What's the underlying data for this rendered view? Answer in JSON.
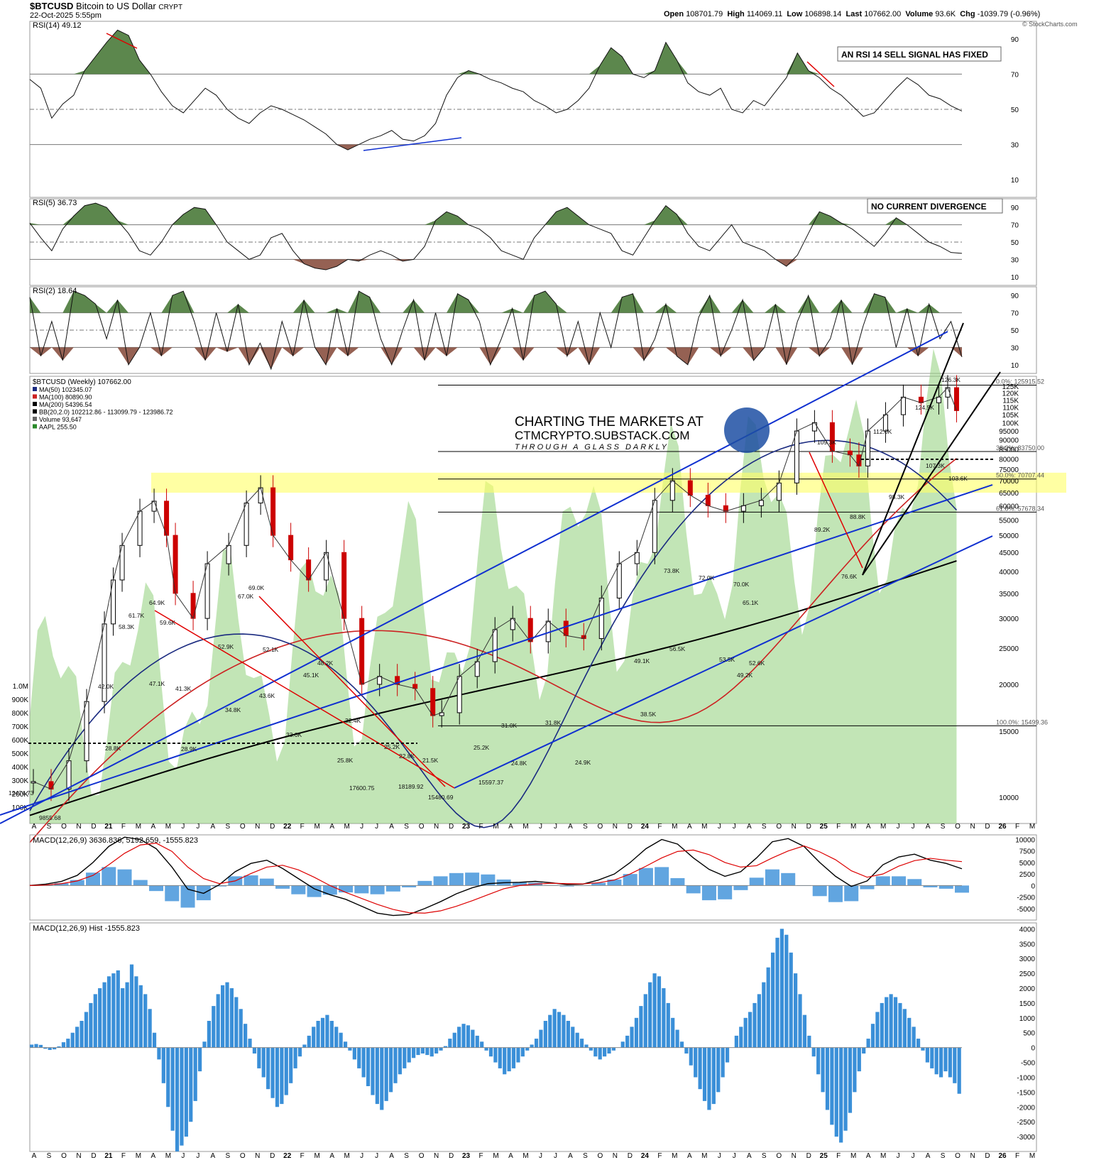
{
  "header": {
    "symbol": "$BTCUSD",
    "name": "Bitcoin to US Dollar",
    "exchange": "CRYPT",
    "date": "22-Oct-2025 5:55pm",
    "open_label": "Open",
    "open": "108701.79",
    "high_label": "High",
    "high": "114069.11",
    "low_label": "Low",
    "low": "106898.14",
    "last_label": "Last",
    "last": "107662.00",
    "volume_label": "Volume",
    "volume": "93.6K",
    "chg_label": "Chg",
    "chg": "-1039.79 (-0.96%)",
    "credit": "© StockCharts.com"
  },
  "colors": {
    "rsi_overbought": "#4a7a3a",
    "rsi_oversold": "#8a5040",
    "price_up": "#000000",
    "price_down": "#cc0000",
    "ma50": "#1a2a80",
    "ma100": "#cc2222",
    "ma200": "#000000",
    "volume_area": "#8fcf7a",
    "fib_band": "#ffff66",
    "macd_hist": "#3a8fd8",
    "trendline_blue": "#1030d0",
    "trendline_red": "#e00000"
  },
  "x_axis_labels": [
    "A",
    "S",
    "O",
    "N",
    "D",
    "21",
    "F",
    "M",
    "A",
    "M",
    "J",
    "J",
    "A",
    "S",
    "O",
    "N",
    "D",
    "22",
    "F",
    "M",
    "A",
    "M",
    "J",
    "J",
    "A",
    "S",
    "O",
    "N",
    "D",
    "23",
    "F",
    "M",
    "A",
    "M",
    "J",
    "J",
    "A",
    "S",
    "O",
    "N",
    "D",
    "24",
    "F",
    "M",
    "A",
    "M",
    "J",
    "J",
    "A",
    "S",
    "O",
    "N",
    "D",
    "25",
    "F",
    "M",
    "A",
    "M",
    "J",
    "J",
    "A",
    "S",
    "O",
    "N",
    "D",
    "26",
    "F",
    "M"
  ],
  "chart_data": [
    {
      "type": "line",
      "panel": "RSI(14)",
      "title": "RSI(14) 49.12",
      "annotation": "AN RSI 14 SELL SIGNAL HAS FIXED",
      "ylim": [
        0,
        100
      ],
      "y_ticks": [
        10,
        30,
        50,
        70,
        90
      ],
      "reference_lines": [
        30,
        50,
        70
      ],
      "series": [
        {
          "values": [
            67,
            62,
            45,
            53,
            58,
            72,
            80,
            88,
            95,
            92,
            78,
            70,
            60,
            52,
            48,
            55,
            62,
            58,
            50,
            45,
            42,
            48,
            52,
            50,
            47,
            44,
            40,
            36,
            30,
            27,
            30,
            33,
            35,
            38,
            33,
            32,
            35,
            42,
            58,
            68,
            72,
            70,
            67,
            65,
            62,
            60,
            55,
            52,
            48,
            50,
            55,
            62,
            75,
            85,
            80,
            70,
            68,
            72,
            88,
            78,
            65,
            60,
            58,
            62,
            50,
            48,
            55,
            52,
            60,
            68,
            82,
            72,
            68,
            62,
            58,
            52,
            46,
            48,
            55,
            62,
            68,
            64,
            58,
            56,
            52,
            49
          ]
        }
      ]
    },
    {
      "type": "line",
      "panel": "RSI(5)",
      "title": "RSI(5) 36.73",
      "annotation": "NO CURRENT DIVERGENCE",
      "ylim": [
        0,
        100
      ],
      "y_ticks": [
        10,
        30,
        50,
        70,
        90
      ],
      "reference_lines": [
        30,
        50,
        70
      ],
      "series": [
        {
          "values": [
            72,
            55,
            40,
            65,
            80,
            92,
            95,
            90,
            75,
            60,
            40,
            35,
            50,
            70,
            82,
            90,
            88,
            70,
            50,
            40,
            30,
            35,
            55,
            60,
            40,
            25,
            20,
            18,
            22,
            30,
            28,
            35,
            40,
            35,
            28,
            30,
            45,
            75,
            85,
            80,
            70,
            65,
            55,
            40,
            35,
            30,
            55,
            70,
            85,
            90,
            80,
            70,
            65,
            60,
            40,
            35,
            55,
            75,
            92,
            82,
            60,
            45,
            40,
            55,
            70,
            50,
            45,
            40,
            30,
            22,
            35,
            60,
            85,
            80,
            72,
            65,
            55,
            45,
            60,
            78,
            70,
            60,
            50,
            45,
            38,
            37
          ]
        }
      ]
    },
    {
      "type": "line",
      "panel": "RSI(2)",
      "title": "RSI(2) 18.64",
      "ylim": [
        0,
        100
      ],
      "y_ticks": [
        10,
        30,
        50,
        70,
        90
      ],
      "reference_lines": [
        30,
        50,
        70
      ],
      "series": [
        {
          "values": [
            88,
            20,
            60,
            15,
            95,
            90,
            80,
            40,
            85,
            10,
            30,
            70,
            20,
            90,
            95,
            60,
            15,
            70,
            25,
            80,
            10,
            35,
            5,
            60,
            20,
            85,
            30,
            10,
            75,
            20,
            95,
            88,
            40,
            10,
            50,
            85,
            15,
            70,
            20,
            92,
            85,
            60,
            10,
            40,
            75,
            15,
            90,
            95,
            80,
            20,
            60,
            10,
            70,
            30,
            88,
            92,
            15,
            40,
            80,
            20,
            10,
            65,
            90,
            20,
            50,
            85,
            15,
            30,
            80,
            10,
            60,
            90,
            20,
            40,
            85,
            10,
            55,
            92,
            88,
            30,
            75,
            20,
            80,
            40,
            60,
            19
          ]
        }
      ]
    },
    {
      "type": "line",
      "panel": "price",
      "title": "$BTCUSD (Weekly) 107662.00",
      "legend": [
        "MA(50) 102345.07",
        "MA(100) 80890.90",
        "MA(200) 54396.54",
        "BB(20,2.0) 102212.86 - 113099.79 - 123986.72",
        "Volume 93,647",
        "AAPL 255.50"
      ],
      "watermark": [
        "CHARTING THE MARKETS AT",
        "CTMCRYPTO.SUBSTACK.COM",
        "THROUGH A GLASS DARKLY"
      ],
      "y_ticks": [
        10000,
        15000,
        20000,
        25000,
        30000,
        35000,
        40000,
        45000,
        50000,
        55000,
        60000,
        65000,
        70000,
        75000,
        80000,
        85000,
        90000,
        95000,
        100000,
        105000,
        110000,
        115000,
        120000,
        125000
      ],
      "y_tick_labels": [
        "10000",
        "15000",
        "20000",
        "25000",
        "30000",
        "35000",
        "40000",
        "45000",
        "50000",
        "55000",
        "60000",
        "65000",
        "70000",
        "75000",
        "80000",
        "85000",
        "90000",
        "95000",
        "100K",
        "105K",
        "110K",
        "115K",
        "120K",
        "125K"
      ],
      "volume_ticks": [
        "100K",
        "200K",
        "300K",
        "400K",
        "500K",
        "600K",
        "700K",
        "800K",
        "900K",
        "1.0M"
      ],
      "fib_levels": [
        {
          "value": 125915,
          "label": "0.0%: 125915.52"
        },
        {
          "value": 83750,
          "label": "38.2%: 83750.00"
        },
        {
          "value": 70707,
          "label": "50.0%: 70707.44"
        },
        {
          "value": 57678,
          "label": "61.8%: 57678.34"
        },
        {
          "value": 15499,
          "label": "100.0%: 15499.36"
        }
      ],
      "series": [
        {
          "name": "$BTCUSD",
          "x": [
            2020.6,
            2020.7,
            2020.8,
            2020.9,
            2021.0,
            2021.05,
            2021.1,
            2021.2,
            2021.28,
            2021.35,
            2021.4,
            2021.5,
            2021.58,
            2021.7,
            2021.8,
            2021.88,
            2021.95,
            2022.05,
            2022.15,
            2022.25,
            2022.35,
            2022.45,
            2022.55,
            2022.65,
            2022.75,
            2022.85,
            2022.9,
            2023.0,
            2023.1,
            2023.2,
            2023.3,
            2023.4,
            2023.5,
            2023.6,
            2023.7,
            2023.8,
            2023.9,
            2024.0,
            2024.1,
            2024.2,
            2024.3,
            2024.4,
            2024.5,
            2024.6,
            2024.7,
            2024.8,
            2024.9,
            2025.0,
            2025.1,
            2025.2,
            2025.25,
            2025.3,
            2025.4,
            2025.5,
            2025.6,
            2025.7,
            2025.75,
            2025.8
          ],
          "values": [
            11000,
            10500,
            12500,
            18000,
            29000,
            38000,
            47000,
            58000,
            61700,
            50000,
            35000,
            30000,
            42000,
            47000,
            61000,
            67000,
            50000,
            43000,
            38000,
            45000,
            30000,
            20000,
            21000,
            20000,
            19500,
            16500,
            16800,
            21000,
            23000,
            28000,
            30000,
            26000,
            29500,
            27000,
            26500,
            34000,
            42000,
            45000,
            62000,
            70000,
            64000,
            60000,
            58000,
            60000,
            62000,
            69000,
            95000,
            100000,
            84000,
            82000,
            76600,
            95000,
            105000,
            117000,
            113000,
            117000,
            124000,
            107662
          ]
        }
      ],
      "annotations": [
        "12474.73",
        "9855.68",
        "28.8K",
        "42.0K",
        "58.3K",
        "61.7K",
        "64.9K",
        "59.6K",
        "47.1K",
        "41.3K",
        "28.9K",
        "34.8K",
        "52.9K",
        "67.0K",
        "69.0K",
        "52.1K",
        "43.6K",
        "33.0K",
        "48.2K",
        "45.1K",
        "32.4K",
        "25.8K",
        "25.2K",
        "22.8K",
        "21.5K",
        "17600.75",
        "18189.92",
        "15480.69",
        "25.2K",
        "15597.37",
        "31.0K",
        "31.8K",
        "24.8K",
        "24.9K",
        "73.8K",
        "72.0K",
        "70.0K",
        "65.1K",
        "49.1K",
        "38.5K",
        "56.5K",
        "53.5K",
        "52.6K",
        "49.2K",
        "109.3K",
        "89.2K",
        "88.8K",
        "76.6K",
        "98.3K",
        "112.0K",
        "124.5K",
        "126.3K",
        "107.3K",
        "103.6K"
      ]
    },
    {
      "type": "line",
      "panel": "MACD",
      "title": "MACD(12,26,9) 3636.836, 5192.659, -1555.823",
      "ylim": [
        -7500,
        11000
      ],
      "y_ticks": [
        -5000,
        -2500,
        0,
        2500,
        5000,
        7500,
        10000
      ],
      "y_tick_labels": [
        "-5000",
        "-2500",
        "0",
        "2500",
        "5000",
        "7500",
        "10000"
      ],
      "series": [
        {
          "values": [
            0,
            300,
            900,
            2200,
            5000,
            8500,
            10500,
            10000,
            8000,
            4000,
            -800,
            -1700,
            200,
            3000,
            4800,
            5500,
            3700,
            1500,
            -700,
            -2000,
            -3000,
            -4500,
            -6000,
            -6500,
            -6300,
            -5000,
            -3500,
            -1800,
            -500,
            400,
            600,
            700,
            900,
            600,
            200,
            300,
            1200,
            2500,
            5000,
            8000,
            10000,
            9000,
            6000,
            3500,
            2000,
            3000,
            6000,
            9500,
            10200,
            8500,
            5000,
            2000,
            -200,
            1000,
            4500,
            6200,
            6800,
            5500,
            4800,
            3637
          ]
        },
        {
          "values": [
            0,
            100,
            400,
            1000,
            2200,
            4500,
            7000,
            8800,
            9200,
            7400,
            4000,
            1500,
            400,
            1000,
            2600,
            4000,
            4400,
            3400,
            1800,
            0,
            -1500,
            -2800,
            -4100,
            -5200,
            -5900,
            -6000,
            -5500,
            -4500,
            -3300,
            -2000,
            -700,
            0,
            300,
            500,
            400,
            350,
            600,
            1200,
            2500,
            4200,
            6000,
            7400,
            7700,
            6700,
            5000,
            4000,
            4300,
            6000,
            7500,
            8600,
            7300,
            5600,
            3200,
            1800,
            2500,
            4200,
            5400,
            5900,
            5500,
            5193
          ]
        }
      ]
    },
    {
      "type": "bar",
      "panel": "MACD Hist",
      "title": "MACD(12,26,9) Hist -1555.823",
      "ylim": [
        -3500,
        4200
      ],
      "y_ticks": [
        -3000,
        -2500,
        -2000,
        -1500,
        -1000,
        -500,
        0,
        500,
        1000,
        1500,
        2000,
        2500,
        3000,
        3500,
        4000
      ],
      "values": [
        100,
        120,
        90,
        -40,
        -80,
        -60,
        40,
        180,
        300,
        500,
        700,
        900,
        1200,
        1500,
        1800,
        2000,
        2200,
        2400,
        2500,
        2600,
        2000,
        2200,
        2800,
        2400,
        2100,
        1800,
        1300,
        500,
        -400,
        -1200,
        -2000,
        -2800,
        -3500,
        -3300,
        -3000,
        -2500,
        -1800,
        -800,
        200,
        900,
        1400,
        1800,
        2100,
        2200,
        2000,
        1700,
        1300,
        800,
        300,
        -200,
        -700,
        -1000,
        -1400,
        -1700,
        -2000,
        -1900,
        -1600,
        -1200,
        -700,
        -300,
        100,
        400,
        700,
        900,
        1000,
        1100,
        900,
        700,
        500,
        200,
        -100,
        -400,
        -700,
        -1000,
        -1300,
        -1600,
        -1900,
        -2100,
        -1800,
        -1500,
        -1200,
        -900,
        -700,
        -500,
        -350,
        -250,
        -200,
        -250,
        -300,
        -200,
        -100,
        50,
        300,
        500,
        700,
        800,
        750,
        600,
        400,
        200,
        -100,
        -300,
        -500,
        -700,
        -900,
        -800,
        -700,
        -500,
        -300,
        -100,
        100,
        300,
        600,
        900,
        1100,
        1300,
        1200,
        1100,
        900,
        700,
        500,
        300,
        100,
        -100,
        -300,
        -400,
        -300,
        -200,
        -100,
        0,
        200,
        400,
        700,
        1000,
        1400,
        1800,
        2200,
        2500,
        2400,
        2000,
        1500,
        1000,
        600,
        200,
        -200,
        -600,
        -1000,
        -1400,
        -1800,
        -2100,
        -1900,
        -1500,
        -1000,
        -500,
        0,
        400,
        700,
        1000,
        1200,
        1500,
        1800,
        2200,
        2700,
        3200,
        3700,
        4000,
        3800,
        3200,
        2500,
        1800,
        1100,
        400,
        -300,
        -900,
        -1500,
        -2100,
        -2600,
        -3000,
        -3200,
        -2800,
        -2200,
        -1500,
        -800,
        -200,
        300,
        800,
        1200,
        1500,
        1700,
        1800,
        1700,
        1500,
        1300,
        1000,
        700,
        300,
        -100,
        -500,
        -700,
        -900,
        -1000,
        -800,
        -1000,
        -1200,
        -1556
      ]
    }
  ]
}
